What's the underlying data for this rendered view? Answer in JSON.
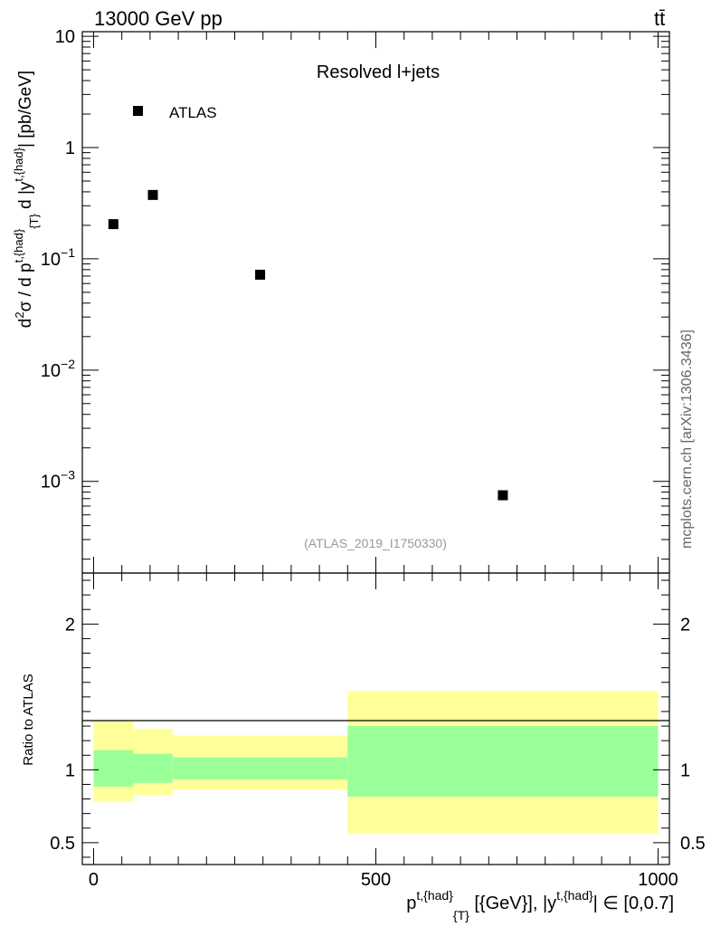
{
  "header": {
    "energy": "13000 GeV pp",
    "process": "tt̄"
  },
  "side_label": "mcplots.cern.ch [arXiv:1306.3436]",
  "chart_data": [
    {
      "type": "scatter",
      "title": "Resolved l+jets",
      "analysis_id": "(ATLAS_2019_I1750330)",
      "ylabel": "d²σ / d p^{t,{had}}_{T} d |y^{t,{had}}| [pb/GeV]",
      "yscale": "log",
      "ylim": [
        0.00015,
        11
      ],
      "xlim": [
        -20,
        1020
      ],
      "yticks": [
        {
          "value": 10,
          "label": "10"
        },
        {
          "value": 1,
          "label": "1"
        },
        {
          "value": 0.1,
          "base": "10",
          "exp": "−1"
        },
        {
          "value": 0.01,
          "base": "10",
          "exp": "−2"
        },
        {
          "value": 0.001,
          "base": "10",
          "exp": "−3"
        }
      ],
      "legend": {
        "label": "ATLAS",
        "position": "top-left"
      },
      "series": [
        {
          "name": "ATLAS",
          "x": [
            35,
            105,
            295,
            725
          ],
          "y": [
            0.205,
            0.375,
            0.072,
            0.00075
          ]
        }
      ]
    },
    {
      "type": "area",
      "ylabel": "Ratio to ATLAS",
      "ylim": [
        0.35,
        2.35
      ],
      "xlim": [
        -20,
        1020
      ],
      "yticks": [
        {
          "value": 2,
          "label": "2"
        },
        {
          "value": 1,
          "label": "1"
        },
        {
          "value": 0.5,
          "label": "0.5"
        }
      ],
      "xticks": [
        {
          "value": 0,
          "label": "0"
        },
        {
          "value": 500,
          "label": "500"
        },
        {
          "value": 1000,
          "label": "1000"
        }
      ],
      "xlabel": "p^{t,{had}}_{T} [{GeV}], |y^{t,{had}}| ∈ [0,0.7]",
      "bins": [
        {
          "x0": 0,
          "x1": 70,
          "inner": [
            0.885,
            1.135
          ],
          "outer": [
            0.78,
            1.335
          ]
        },
        {
          "x0": 70,
          "x1": 140,
          "inner": [
            0.91,
            1.11
          ],
          "outer": [
            0.825,
            1.28
          ]
        },
        {
          "x0": 140,
          "x1": 450,
          "inner": [
            0.935,
            1.085
          ],
          "outer": [
            0.865,
            1.235
          ]
        },
        {
          "x0": 450,
          "x1": 1000,
          "inner": [
            0.815,
            1.3
          ],
          "outer": [
            0.56,
            1.54
          ]
        }
      ],
      "colors": {
        "inner": "#99ff99",
        "outer": "#ffff99",
        "reference": "#000000"
      }
    }
  ]
}
